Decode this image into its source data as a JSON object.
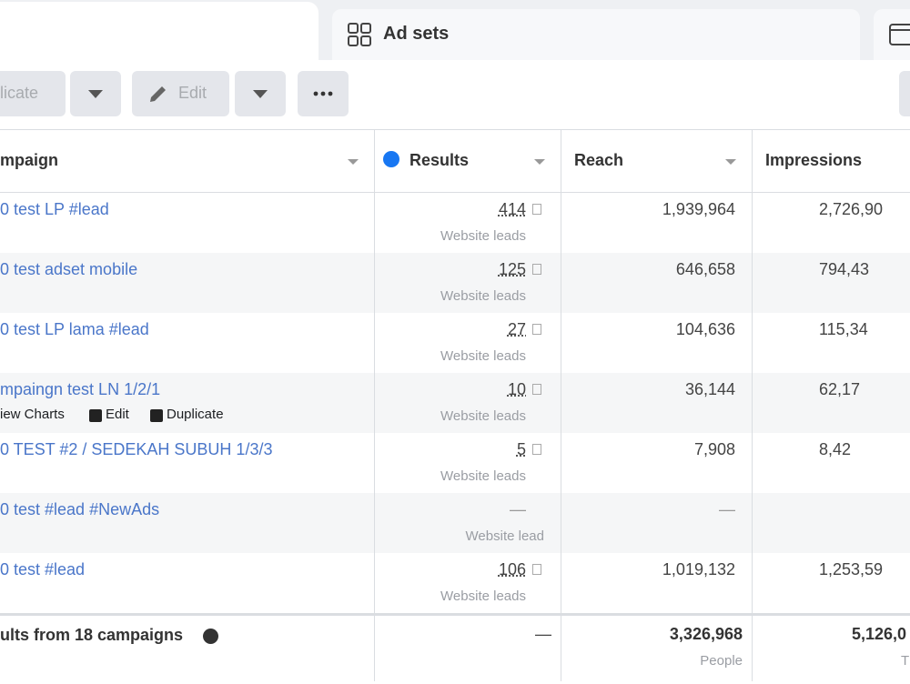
{
  "tabs": {
    "ad_sets": "Ad sets"
  },
  "toolbar": {
    "duplicate": "licate",
    "edit": "Edit"
  },
  "table": {
    "columns": [
      "mpaign",
      "Results",
      "Reach",
      "Impressions"
    ],
    "rows": [
      {
        "name": "0 test LP #lead",
        "results": "414",
        "results_label": "Website leads",
        "reach": "1,939,964",
        "impressions": "2,726,90"
      },
      {
        "name": "0 test adset mobile",
        "results": "125",
        "results_label": "Website leads",
        "reach": "646,658",
        "impressions": "794,43"
      },
      {
        "name": "0 test LP lama #lead",
        "results": "27",
        "results_label": "Website leads",
        "reach": "104,636",
        "impressions": "115,34"
      },
      {
        "name": "mpaingn test LN 1/2/1",
        "actions": [
          "iew Charts",
          "Edit",
          "Duplicate"
        ],
        "results": "10",
        "results_label": "Website leads",
        "reach": "36,144",
        "impressions": "62,17"
      },
      {
        "name": "0 TEST #2 / SEDEKAH SUBUH 1/3/3",
        "results": "5",
        "results_label": "Website leads",
        "reach": "7,908",
        "impressions": "8,42"
      },
      {
        "name": "0 test #lead #NewAds",
        "results": "—",
        "results_label": "Website lead",
        "reach": "—"
      },
      {
        "name": "0 test #lead",
        "results": "106",
        "results_label": "Website leads",
        "reach": "1,019,132",
        "impressions": "1,253,59"
      }
    ],
    "footer": {
      "name": "ults from 18 campaigns",
      "results": "—",
      "reach": "3,326,968",
      "reach_label": "People",
      "impressions": "5,126,0",
      "impressions_label": "T"
    }
  }
}
